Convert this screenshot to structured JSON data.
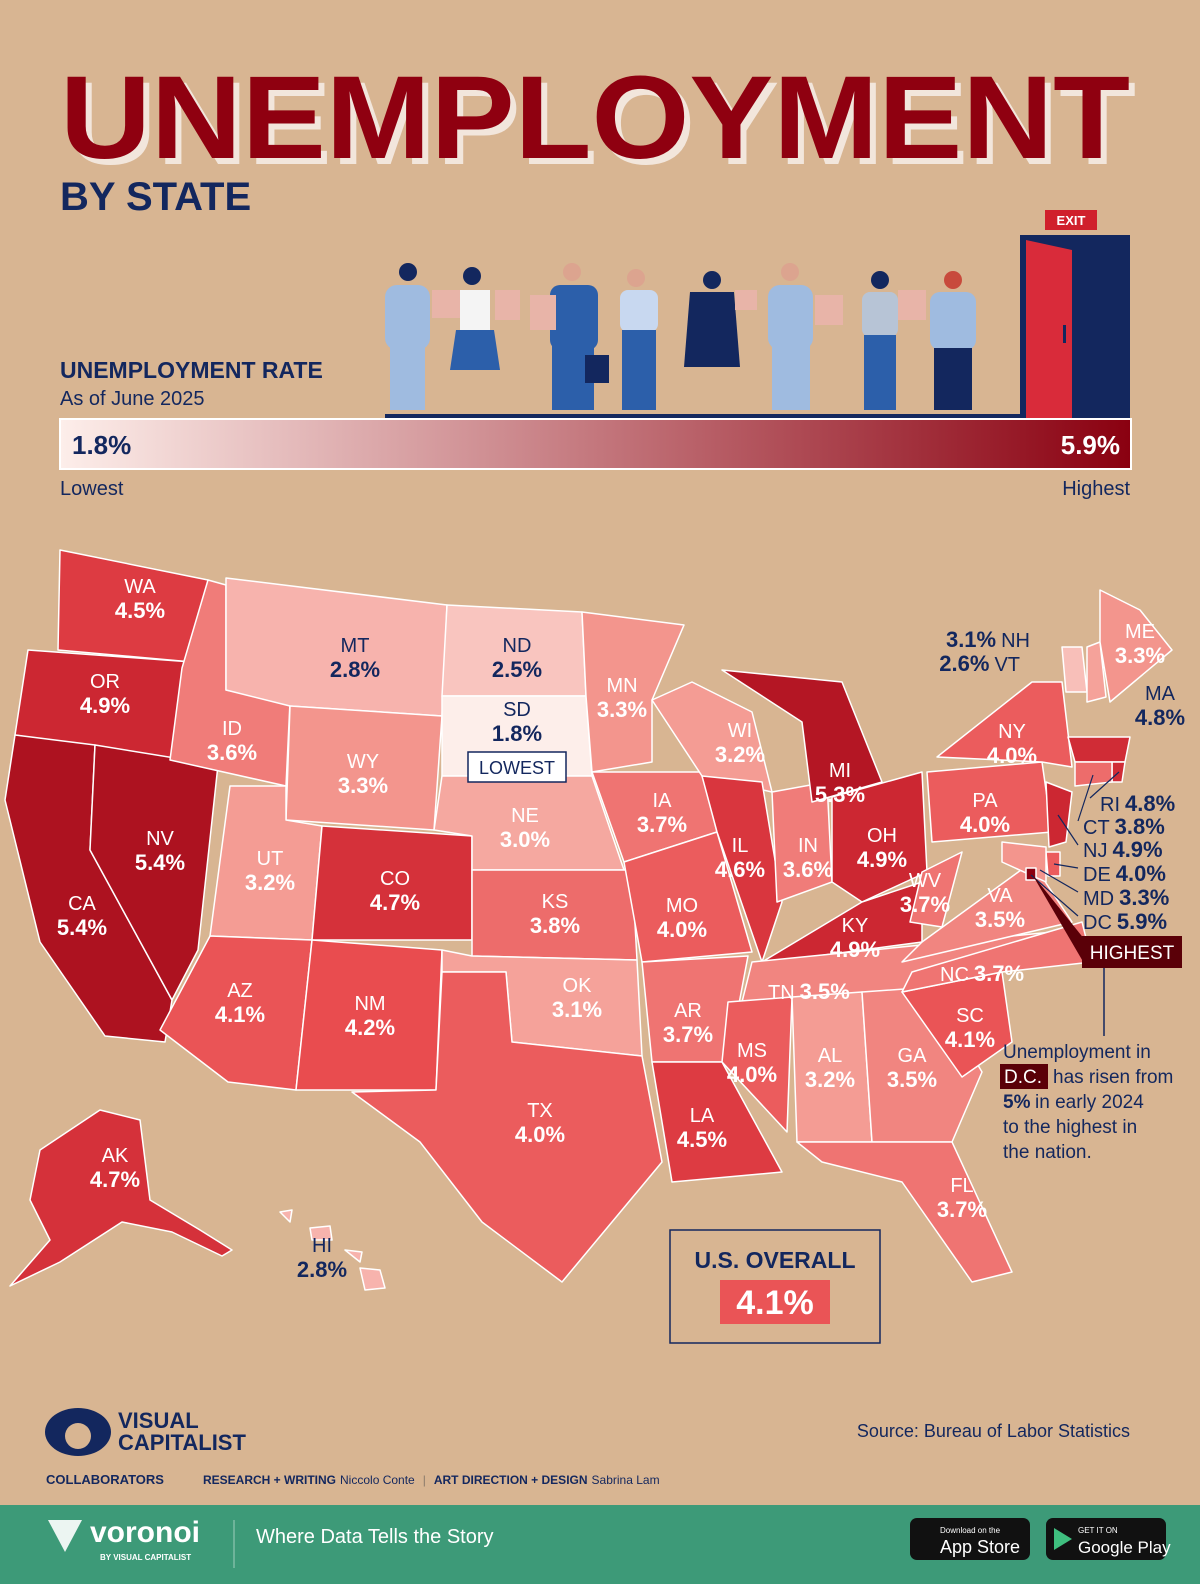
{
  "header": {
    "title": "UNEMPLOYMENT",
    "subtitle": "BY STATE",
    "exit_sign": "EXIT"
  },
  "legend": {
    "title": "UNEMPLOYMENT RATE",
    "subtitle": "As of June 2025",
    "min": {
      "value": 1.8,
      "label": "1.8%"
    },
    "max": {
      "value": 5.9,
      "label": "5.9%"
    },
    "min_caption": "Lowest",
    "max_caption": "Highest"
  },
  "states": [
    {
      "abbr": "WA",
      "value": 4.5,
      "label": "4.5%"
    },
    {
      "abbr": "OR",
      "value": 4.9,
      "label": "4.9%"
    },
    {
      "abbr": "CA",
      "value": 5.4,
      "label": "5.4%"
    },
    {
      "abbr": "NV",
      "value": 5.4,
      "label": "5.4%"
    },
    {
      "abbr": "ID",
      "value": 3.6,
      "label": "3.6%"
    },
    {
      "abbr": "MT",
      "value": 2.8,
      "label": "2.8%"
    },
    {
      "abbr": "WY",
      "value": 3.3,
      "label": "3.3%"
    },
    {
      "abbr": "UT",
      "value": 3.2,
      "label": "3.2%"
    },
    {
      "abbr": "CO",
      "value": 4.7,
      "label": "4.7%"
    },
    {
      "abbr": "AZ",
      "value": 4.1,
      "label": "4.1%"
    },
    {
      "abbr": "NM",
      "value": 4.2,
      "label": "4.2%"
    },
    {
      "abbr": "ND",
      "value": 2.5,
      "label": "2.5%"
    },
    {
      "abbr": "SD",
      "value": 1.8,
      "label": "1.8%"
    },
    {
      "abbr": "NE",
      "value": 3.0,
      "label": "3.0%"
    },
    {
      "abbr": "KS",
      "value": 3.8,
      "label": "3.8%"
    },
    {
      "abbr": "OK",
      "value": 3.1,
      "label": "3.1%"
    },
    {
      "abbr": "TX",
      "value": 4.0,
      "label": "4.0%"
    },
    {
      "abbr": "MN",
      "value": 3.3,
      "label": "3.3%"
    },
    {
      "abbr": "IA",
      "value": 3.7,
      "label": "3.7%"
    },
    {
      "abbr": "MO",
      "value": 4.0,
      "label": "4.0%"
    },
    {
      "abbr": "AR",
      "value": 3.7,
      "label": "3.7%"
    },
    {
      "abbr": "LA",
      "value": 4.5,
      "label": "4.5%"
    },
    {
      "abbr": "WI",
      "value": 3.2,
      "label": "3.2%"
    },
    {
      "abbr": "IL",
      "value": 4.6,
      "label": "4.6%"
    },
    {
      "abbr": "IN",
      "value": 3.6,
      "label": "3.6%"
    },
    {
      "abbr": "MI",
      "value": 5.3,
      "label": "5.3%"
    },
    {
      "abbr": "OH",
      "value": 4.9,
      "label": "4.9%"
    },
    {
      "abbr": "KY",
      "value": 4.9,
      "label": "4.9%"
    },
    {
      "abbr": "TN",
      "value": 3.5,
      "label": "3.5%"
    },
    {
      "abbr": "MS",
      "value": 4.0,
      "label": "4.0%"
    },
    {
      "abbr": "AL",
      "value": 3.2,
      "label": "3.2%"
    },
    {
      "abbr": "GA",
      "value": 3.5,
      "label": "3.5%"
    },
    {
      "abbr": "FL",
      "value": 3.7,
      "label": "3.7%"
    },
    {
      "abbr": "SC",
      "value": 4.1,
      "label": "4.1%"
    },
    {
      "abbr": "NC",
      "value": 3.7,
      "label": "3.7%"
    },
    {
      "abbr": "VA",
      "value": 3.5,
      "label": "3.5%"
    },
    {
      "abbr": "WV",
      "value": 3.7,
      "label": "3.7%"
    },
    {
      "abbr": "PA",
      "value": 4.0,
      "label": "4.0%"
    },
    {
      "abbr": "NY",
      "value": 4.0,
      "label": "4.0%"
    },
    {
      "abbr": "VT",
      "value": 2.6,
      "label": "2.6%"
    },
    {
      "abbr": "NH",
      "value": 3.1,
      "label": "3.1%"
    },
    {
      "abbr": "ME",
      "value": 3.3,
      "label": "3.3%"
    },
    {
      "abbr": "MA",
      "value": 4.8,
      "label": "4.8%"
    },
    {
      "abbr": "RI",
      "value": 4.8,
      "label": "4.8%"
    },
    {
      "abbr": "CT",
      "value": 3.8,
      "label": "3.8%"
    },
    {
      "abbr": "NJ",
      "value": 4.9,
      "label": "4.9%"
    },
    {
      "abbr": "DE",
      "value": 4.0,
      "label": "4.0%"
    },
    {
      "abbr": "MD",
      "value": 3.3,
      "label": "3.3%"
    },
    {
      "abbr": "DC",
      "value": 5.9,
      "label": "5.9%"
    },
    {
      "abbr": "AK",
      "value": 4.7,
      "label": "4.7%"
    },
    {
      "abbr": "HI",
      "value": 2.8,
      "label": "2.8%"
    }
  ],
  "callouts": {
    "lowest": "LOWEST",
    "highest": "HIGHEST"
  },
  "annotation": [
    "Unemployment in",
    "D.C.",
    "has risen from",
    "5%",
    "in early 2024",
    "to the highest in",
    "the nation."
  ],
  "overall": {
    "title": "U.S. OVERALL",
    "value": 4.1,
    "label": "4.1%"
  },
  "source": "Source: Bureau of Labor Statistics",
  "branding": {
    "line1": "VISUAL",
    "line2": "CAPITALIST",
    "collaborators": "COLLABORATORS",
    "role1": "RESEARCH + WRITING",
    "name1": "Niccolo Conte",
    "role2": "ART DIRECTION + DESIGN",
    "name2": "Sabrina Lam"
  },
  "footer": {
    "brand": "voronoi",
    "brand_sub": "BY VISUAL CAPITALIST",
    "tagline": "Where Data Tells the Story",
    "appstore_small": "Download on the",
    "appstore": "App Store",
    "play_small": "GET IT ON",
    "play": "Google Play"
  }
}
